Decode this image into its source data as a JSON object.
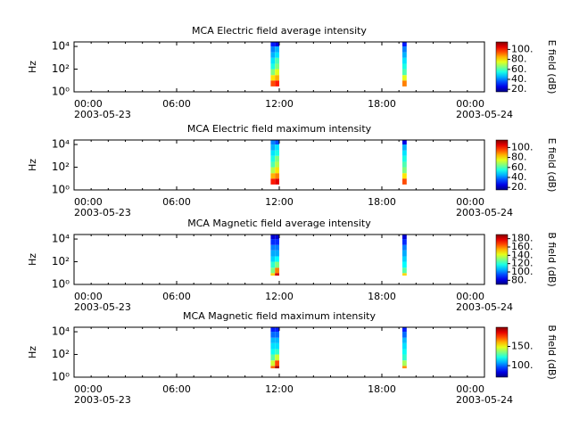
{
  "chart_data": [
    {
      "type": "heatmap",
      "title": "MCA  Electric field average intensity",
      "ylabel": "Hz",
      "colorbar_label": "E field (dB)",
      "colormap": "jet",
      "xlim": [
        0,
        24
      ],
      "xticks": [
        {
          "value": 0,
          "label": "00:00"
        },
        {
          "value": 6,
          "label": "06:00"
        },
        {
          "value": 12,
          "label": "12:00"
        },
        {
          "value": 18,
          "label": "18:00"
        },
        {
          "value": 24,
          "label": "00:00"
        }
      ],
      "date_labels": [
        {
          "value": 0,
          "label": "2003-05-23"
        },
        {
          "value": 24,
          "label": "2003-05-24"
        }
      ],
      "log_y": true,
      "ylim": [
        1,
        25000
      ],
      "yticks": [
        {
          "value": 1,
          "label": "10⁰"
        },
        {
          "value": 100,
          "label": "10²"
        },
        {
          "value": 10000,
          "label": "10⁴"
        }
      ],
      "clim": [
        15,
        115
      ],
      "cticks": [
        {
          "value": 20,
          "label": "20."
        },
        {
          "value": 40,
          "label": "40."
        },
        {
          "value": 60,
          "label": "60."
        },
        {
          "value": 80,
          "label": "80."
        },
        {
          "value": 100,
          "label": "100."
        }
      ],
      "x_edges": [
        11.5,
        11.75,
        12.0,
        19.2,
        19.45
      ],
      "y_edges": [
        3,
        10,
        30,
        100,
        300,
        1000,
        3000,
        10000,
        25000
      ],
      "z": [
        [
          95,
          100,
          null,
          90
        ],
        [
          80,
          85,
          null,
          75
        ],
        [
          65,
          75,
          null,
          60
        ],
        [
          55,
          65,
          null,
          55
        ],
        [
          50,
          60,
          null,
          50
        ],
        [
          45,
          50,
          null,
          45
        ],
        [
          40,
          45,
          null,
          40
        ],
        [
          30,
          25,
          null,
          30
        ]
      ]
    },
    {
      "type": "heatmap",
      "title": "MCA  Electric field maximum intensity",
      "ylabel": "Hz",
      "colorbar_label": "E field (dB)",
      "colormap": "jet",
      "xlim": [
        0,
        24
      ],
      "xticks": [
        {
          "value": 0,
          "label": "00:00"
        },
        {
          "value": 6,
          "label": "06:00"
        },
        {
          "value": 12,
          "label": "12:00"
        },
        {
          "value": 18,
          "label": "18:00"
        },
        {
          "value": 24,
          "label": "00:00"
        }
      ],
      "date_labels": [
        {
          "value": 0,
          "label": "2003-05-23"
        },
        {
          "value": 24,
          "label": "2003-05-24"
        }
      ],
      "log_y": true,
      "ylim": [
        1,
        25000
      ],
      "yticks": [
        {
          "value": 1,
          "label": "10⁰"
        },
        {
          "value": 100,
          "label": "10²"
        },
        {
          "value": 10000,
          "label": "10⁴"
        }
      ],
      "clim": [
        15,
        115
      ],
      "cticks": [
        {
          "value": 20,
          "label": "20."
        },
        {
          "value": 40,
          "label": "40."
        },
        {
          "value": 60,
          "label": "60."
        },
        {
          "value": 80,
          "label": "80."
        },
        {
          "value": 100,
          "label": "100."
        }
      ],
      "x_edges": [
        11.5,
        11.75,
        12.0,
        19.2,
        19.45
      ],
      "y_edges": [
        3,
        10,
        30,
        100,
        300,
        1000,
        3000,
        10000,
        25000
      ],
      "z": [
        [
          100,
          105,
          null,
          95
        ],
        [
          85,
          90,
          null,
          80
        ],
        [
          70,
          80,
          null,
          65
        ],
        [
          60,
          70,
          null,
          60
        ],
        [
          55,
          65,
          null,
          55
        ],
        [
          50,
          55,
          null,
          50
        ],
        [
          45,
          50,
          null,
          45
        ],
        [
          40,
          35,
          null,
          25
        ]
      ]
    },
    {
      "type": "heatmap",
      "title": "MCA  Magnetic field average intensity",
      "ylabel": "Hz",
      "colorbar_label": "B field (dB)",
      "colormap": "jet",
      "xlim": [
        0,
        24
      ],
      "xticks": [
        {
          "value": 0,
          "label": "00:00"
        },
        {
          "value": 6,
          "label": "06:00"
        },
        {
          "value": 12,
          "label": "12:00"
        },
        {
          "value": 18,
          "label": "18:00"
        },
        {
          "value": 24,
          "label": "00:00"
        }
      ],
      "date_labels": [
        {
          "value": 0,
          "label": "2003-05-23"
        },
        {
          "value": 24,
          "label": "2003-05-24"
        }
      ],
      "log_y": true,
      "ylim": [
        1,
        25000
      ],
      "yticks": [
        {
          "value": 1,
          "label": "10⁰"
        },
        {
          "value": 100,
          "label": "10²"
        },
        {
          "value": 10000,
          "label": "10⁴"
        }
      ],
      "clim": [
        70,
        190
      ],
      "cticks": [
        {
          "value": 80,
          "label": "80."
        },
        {
          "value": 100,
          "label": "100."
        },
        {
          "value": 120,
          "label": "120."
        },
        {
          "value": 140,
          "label": "140."
        },
        {
          "value": 160,
          "label": "160."
        },
        {
          "value": 180,
          "label": "180."
        }
      ],
      "x_edges": [
        11.5,
        11.75,
        12.0,
        19.2,
        19.45
      ],
      "y_edges": [
        6,
        10,
        30,
        100,
        300,
        1000,
        3000,
        10000,
        25000
      ],
      "z": [
        [
          150,
          180,
          null,
          150
        ],
        [
          130,
          160,
          null,
          125
        ],
        [
          120,
          130,
          null,
          115
        ],
        [
          110,
          115,
          null,
          110
        ],
        [
          105,
          105,
          null,
          105
        ],
        [
          100,
          100,
          null,
          100
        ],
        [
          90,
          90,
          null,
          90
        ],
        [
          80,
          80,
          null,
          80
        ]
      ]
    },
    {
      "type": "heatmap",
      "title": "MCA  Magnetic field maximum intensity",
      "ylabel": "Hz",
      "colorbar_label": "B field (dB)",
      "colormap": "jet",
      "xlim": [
        0,
        24
      ],
      "xticks": [
        {
          "value": 0,
          "label": "00:00"
        },
        {
          "value": 6,
          "label": "06:00"
        },
        {
          "value": 12,
          "label": "12:00"
        },
        {
          "value": 18,
          "label": "18:00"
        },
        {
          "value": 24,
          "label": "00:00"
        }
      ],
      "date_labels": [
        {
          "value": 0,
          "label": "2003-05-23"
        },
        {
          "value": 24,
          "label": "2003-05-24"
        }
      ],
      "log_y": true,
      "ylim": [
        1,
        25000
      ],
      "yticks": [
        {
          "value": 1,
          "label": "10⁰"
        },
        {
          "value": 100,
          "label": "10²"
        },
        {
          "value": 10000,
          "label": "10⁴"
        }
      ],
      "clim": [
        70,
        200
      ],
      "cticks": [
        {
          "value": 100,
          "label": "100."
        },
        {
          "value": 150,
          "label": "150."
        }
      ],
      "x_edges": [
        11.5,
        11.75,
        12.0,
        19.2,
        19.45
      ],
      "y_edges": [
        6,
        10,
        30,
        100,
        300,
        1000,
        3000,
        10000,
        25000
      ],
      "z": [
        [
          170,
          195,
          null,
          165
        ],
        [
          145,
          175,
          null,
          140
        ],
        [
          130,
          145,
          null,
          125
        ],
        [
          120,
          125,
          null,
          120
        ],
        [
          115,
          115,
          null,
          115
        ],
        [
          110,
          110,
          null,
          110
        ],
        [
          100,
          100,
          null,
          100
        ],
        [
          90,
          90,
          null,
          90
        ]
      ]
    }
  ]
}
